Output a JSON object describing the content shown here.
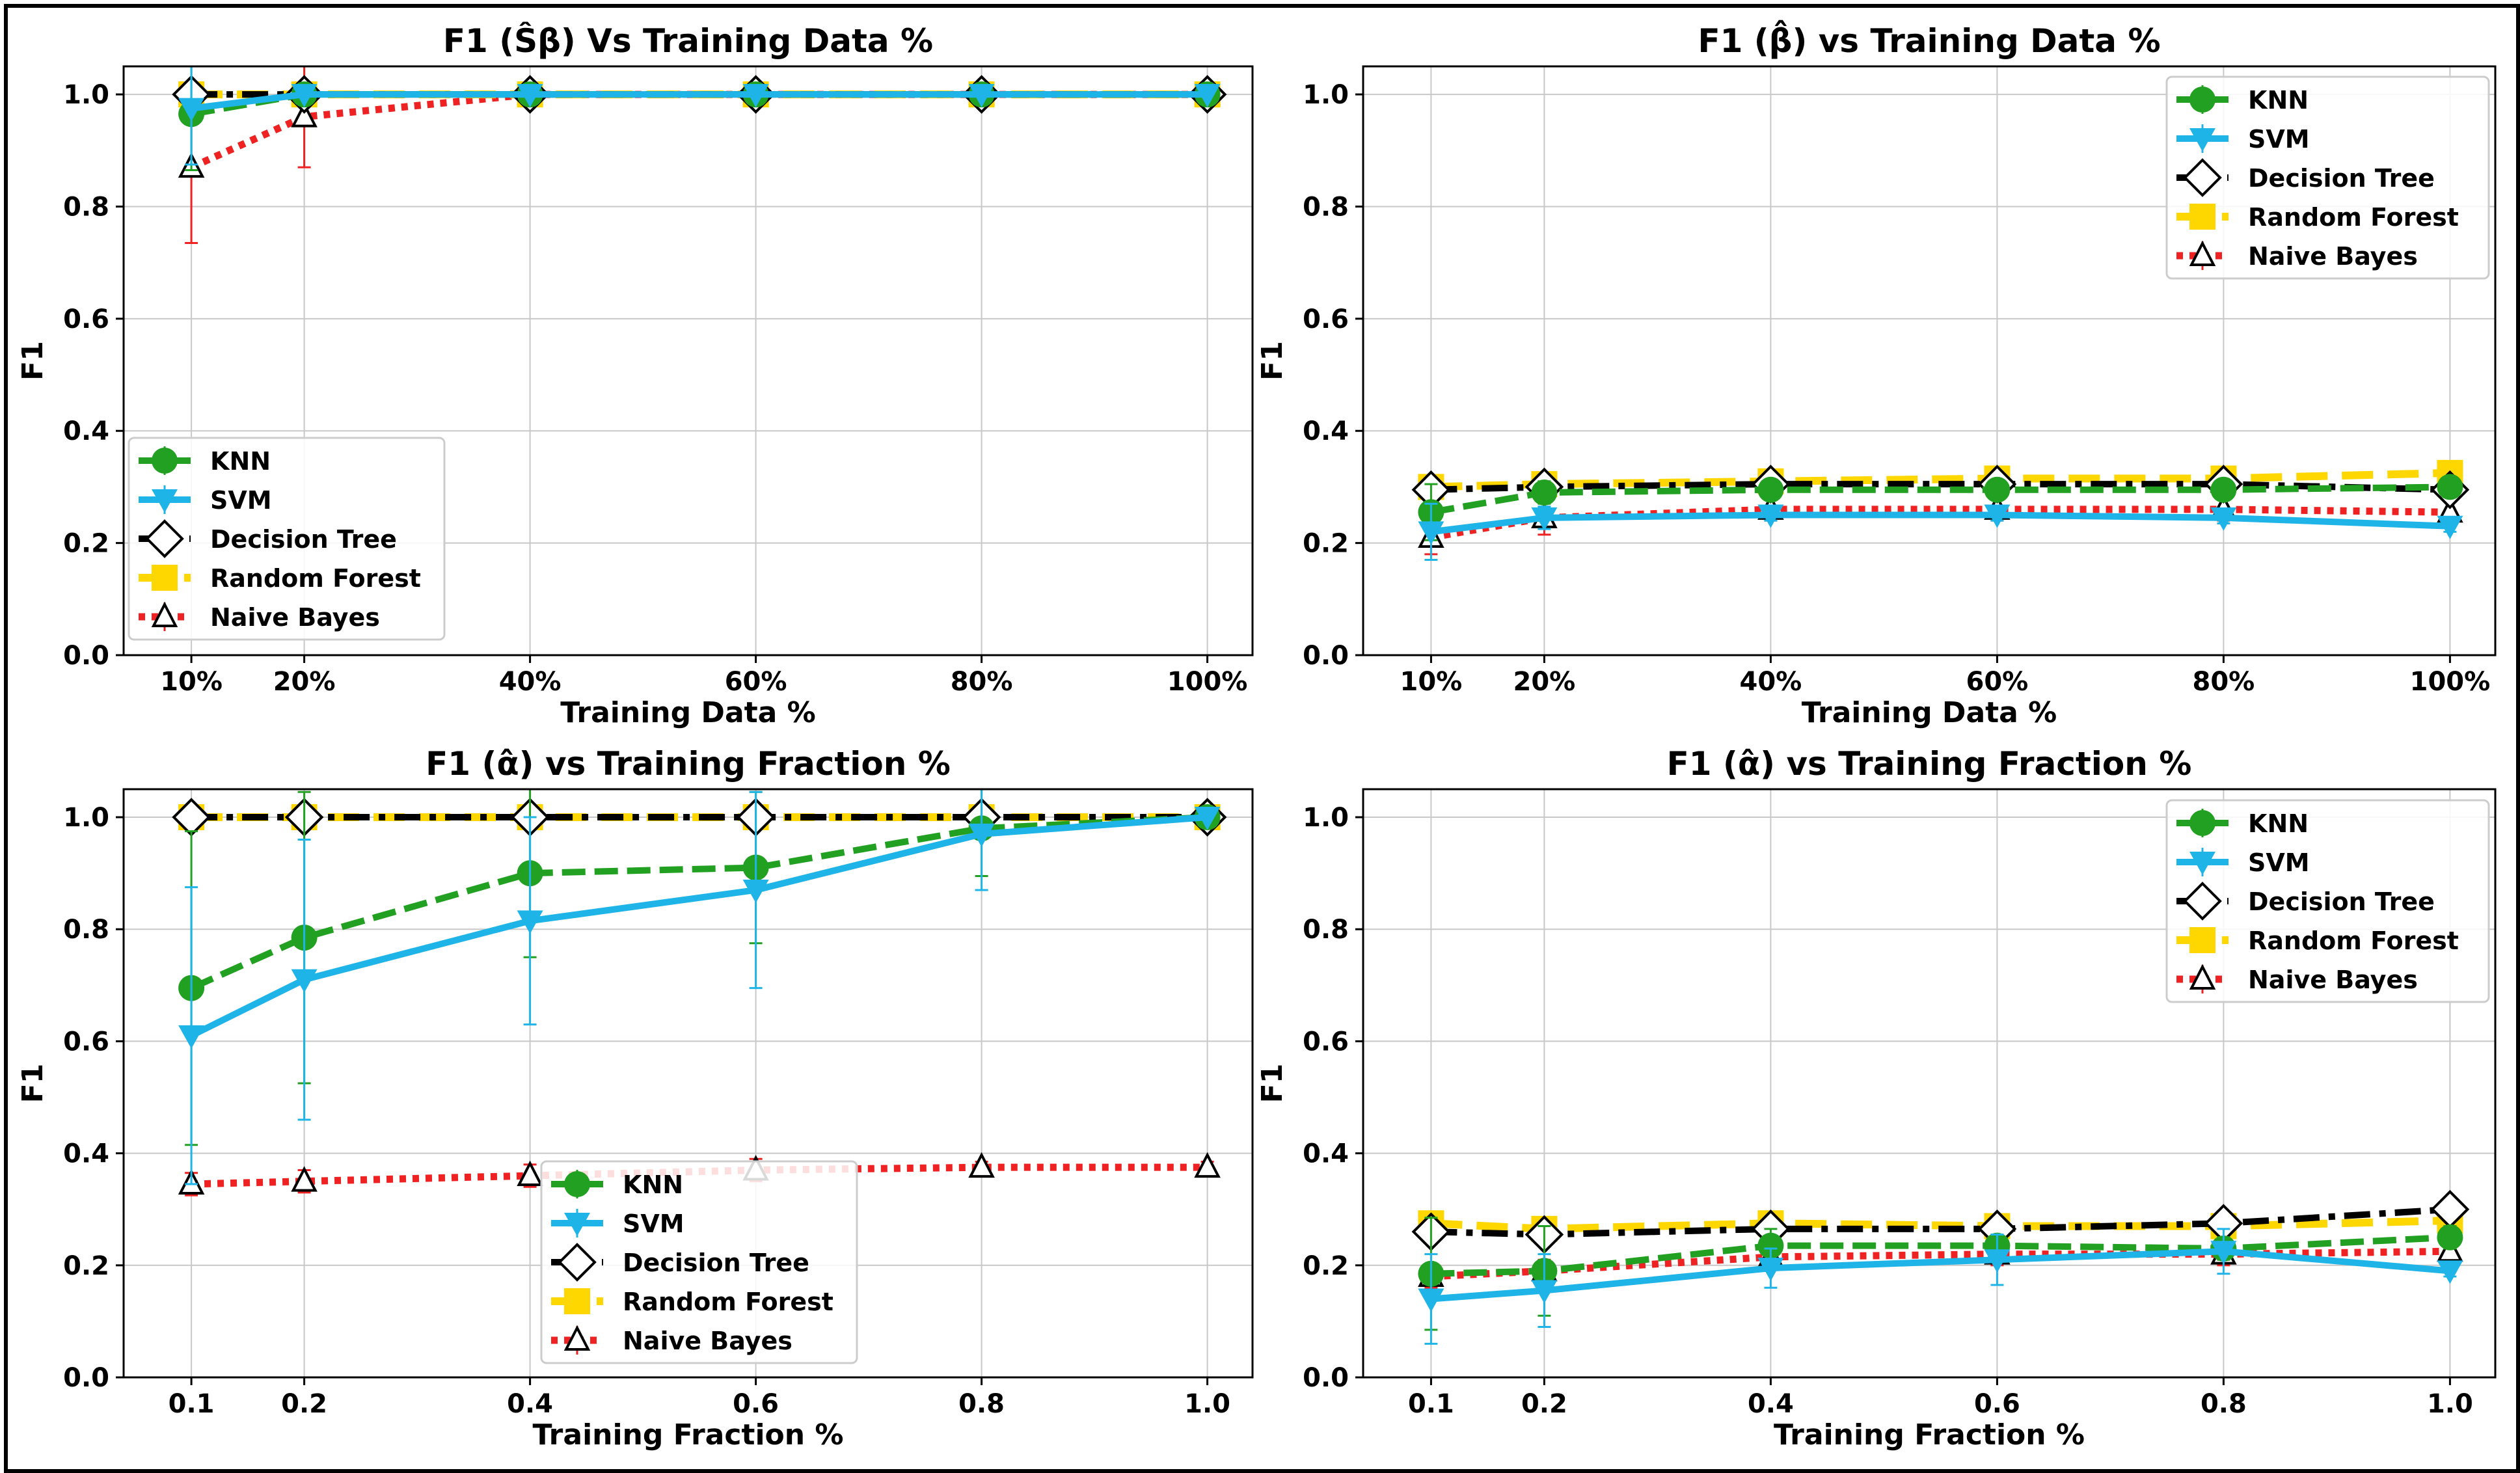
{
  "colors": {
    "KNN": "#22a022",
    "SVM": "#1fb4e8",
    "Decision Tree": "#000000",
    "Random Forest": "#ffd700",
    "Naive Bayes": "#ee2222"
  },
  "chart_data": [
    {
      "type": "line",
      "title": "F1 (Ŝβ) Vs Training Data %",
      "xlabel": "Training Data %",
      "ylabel": "F1",
      "x": [
        10,
        20,
        40,
        60,
        80,
        100
      ],
      "x_tick_labels": [
        "10%",
        "20%",
        "40%",
        "60%",
        "80%",
        "100%"
      ],
      "y_ticks": [
        "0.0",
        "0.2",
        "0.4",
        "0.6",
        "0.8",
        "1.0"
      ],
      "xlim": [
        4,
        104
      ],
      "ylim": [
        0,
        1.05
      ],
      "grid": true,
      "legend_position": "lower-left",
      "series": [
        {
          "name": "KNN",
          "values": [
            0.965,
            1.0,
            1.0,
            1.0,
            1.0,
            1.0
          ],
          "err": [
            0.1,
            0.0,
            0.0,
            0.0,
            0.0,
            0.0
          ]
        },
        {
          "name": "SVM",
          "values": [
            0.975,
            1.0,
            1.0,
            1.0,
            1.0,
            1.0
          ],
          "err": [
            0.1,
            0.0,
            0.0,
            0.0,
            0.0,
            0.0
          ]
        },
        {
          "name": "Decision Tree",
          "values": [
            1.0,
            1.0,
            1.0,
            1.0,
            1.0,
            1.0
          ],
          "err": [
            0,
            0,
            0,
            0,
            0,
            0
          ]
        },
        {
          "name": "Random Forest",
          "values": [
            1.0,
            1.0,
            1.0,
            1.0,
            1.0,
            1.0
          ],
          "err": [
            0,
            0,
            0,
            0,
            0,
            0
          ]
        },
        {
          "name": "Naive Bayes",
          "values": [
            0.87,
            0.96,
            1.0,
            1.0,
            1.0,
            1.0
          ],
          "err": [
            0.135,
            0.09,
            0.0,
            0.0,
            0.0,
            0.0
          ]
        }
      ]
    },
    {
      "type": "line",
      "title": "F1 (β̂) vs Training Data %",
      "xlabel": "Training Data %",
      "ylabel": "F1",
      "x": [
        10,
        20,
        40,
        60,
        80,
        100
      ],
      "x_tick_labels": [
        "10%",
        "20%",
        "40%",
        "60%",
        "80%",
        "100%"
      ],
      "y_ticks": [
        "0.0",
        "0.2",
        "0.4",
        "0.6",
        "0.8",
        "1.0"
      ],
      "xlim": [
        4,
        104
      ],
      "ylim": [
        0,
        1.05
      ],
      "grid": true,
      "legend_position": "upper-right",
      "series": [
        {
          "name": "KNN",
          "values": [
            0.255,
            0.29,
            0.295,
            0.295,
            0.295,
            0.3
          ],
          "err": [
            0.05,
            0.02,
            0.01,
            0.01,
            0.01,
            0.01
          ]
        },
        {
          "name": "SVM",
          "values": [
            0.22,
            0.245,
            0.25,
            0.25,
            0.245,
            0.23
          ],
          "err": [
            0.05,
            0.02,
            0.01,
            0.01,
            0.01,
            0.01
          ]
        },
        {
          "name": "Decision Tree",
          "values": [
            0.295,
            0.3,
            0.305,
            0.305,
            0.305,
            0.295
          ],
          "err": [
            0.01,
            0.01,
            0.01,
            0.01,
            0.01,
            0.01
          ]
        },
        {
          "name": "Random Forest",
          "values": [
            0.3,
            0.305,
            0.31,
            0.315,
            0.315,
            0.325
          ],
          "err": [
            0.01,
            0.01,
            0.01,
            0.01,
            0.01,
            0.01
          ]
        },
        {
          "name": "Naive Bayes",
          "values": [
            0.21,
            0.245,
            0.26,
            0.26,
            0.26,
            0.255
          ],
          "err": [
            0.03,
            0.03,
            0.02,
            0.02,
            0.02,
            0.02
          ]
        }
      ]
    },
    {
      "type": "line",
      "title": "F1 (α̂̂) vs Training Fraction %",
      "xlabel": "Training Fraction %",
      "ylabel": "F1",
      "x": [
        0.1,
        0.2,
        0.4,
        0.6,
        0.8,
        1.0
      ],
      "x_tick_labels": [
        "0.1",
        "0.2",
        "0.4",
        "0.6",
        "0.8",
        "1.0"
      ],
      "y_ticks": [
        "0.0",
        "0.2",
        "0.4",
        "0.6",
        "0.8",
        "1.0"
      ],
      "xlim": [
        0.04,
        1.04
      ],
      "ylim": [
        0,
        1.05
      ],
      "grid": true,
      "legend_position": "lower-center",
      "series": [
        {
          "name": "KNN",
          "values": [
            0.695,
            0.785,
            0.9,
            0.91,
            0.98,
            1.0
          ],
          "err": [
            0.28,
            0.26,
            0.15,
            0.135,
            0.085,
            0.0
          ]
        },
        {
          "name": "SVM",
          "values": [
            0.61,
            0.71,
            0.815,
            0.87,
            0.97,
            1.0
          ],
          "err": [
            0.265,
            0.25,
            0.185,
            0.175,
            0.1,
            0.0
          ]
        },
        {
          "name": "Decision Tree",
          "values": [
            1.0,
            1.0,
            1.0,
            1.0,
            1.0,
            1.0
          ],
          "err": [
            0,
            0,
            0,
            0,
            0,
            0
          ]
        },
        {
          "name": "Random Forest",
          "values": [
            1.0,
            1.0,
            1.0,
            1.0,
            1.0,
            1.0
          ],
          "err": [
            0,
            0,
            0,
            0,
            0,
            0
          ]
        },
        {
          "name": "Naive Bayes",
          "values": [
            0.345,
            0.35,
            0.36,
            0.37,
            0.375,
            0.375
          ],
          "err": [
            0.02,
            0.02,
            0.02,
            0.02,
            0.01,
            0.01
          ]
        }
      ]
    },
    {
      "type": "line",
      "title": "F1 (α̂) vs Training Fraction %",
      "xlabel": "Training Fraction %",
      "ylabel": "F1",
      "x": [
        0.1,
        0.2,
        0.4,
        0.6,
        0.8,
        1.0
      ],
      "x_tick_labels": [
        "0.1",
        "0.2",
        "0.4",
        "0.6",
        "0.8",
        "1.0"
      ],
      "y_ticks": [
        "0.0",
        "0.2",
        "0.4",
        "0.6",
        "0.8",
        "1.0"
      ],
      "xlim": [
        0.04,
        1.04
      ],
      "ylim": [
        0,
        1.05
      ],
      "grid": true,
      "legend_position": "upper-right",
      "series": [
        {
          "name": "KNN",
          "values": [
            0.185,
            0.19,
            0.235,
            0.235,
            0.23,
            0.25
          ],
          "err": [
            0.1,
            0.08,
            0.03,
            0.02,
            0.02,
            0.02
          ]
        },
        {
          "name": "SVM",
          "values": [
            0.14,
            0.155,
            0.195,
            0.21,
            0.225,
            0.19
          ],
          "err": [
            0.08,
            0.065,
            0.035,
            0.045,
            0.04,
            0.01
          ]
        },
        {
          "name": "Decision Tree",
          "values": [
            0.26,
            0.255,
            0.265,
            0.265,
            0.275,
            0.3
          ],
          "err": [
            0.01,
            0.01,
            0.01,
            0.01,
            0.01,
            0.01
          ]
        },
        {
          "name": "Random Forest",
          "values": [
            0.275,
            0.265,
            0.275,
            0.27,
            0.27,
            0.28
          ],
          "err": [
            0.01,
            0.01,
            0.01,
            0.01,
            0.01,
            0.01
          ]
        },
        {
          "name": "Naive Bayes",
          "values": [
            0.18,
            0.19,
            0.215,
            0.22,
            0.22,
            0.225
          ],
          "err": [
            0.02,
            0.02,
            0.02,
            0.02,
            0.02,
            0.02
          ]
        }
      ]
    }
  ]
}
